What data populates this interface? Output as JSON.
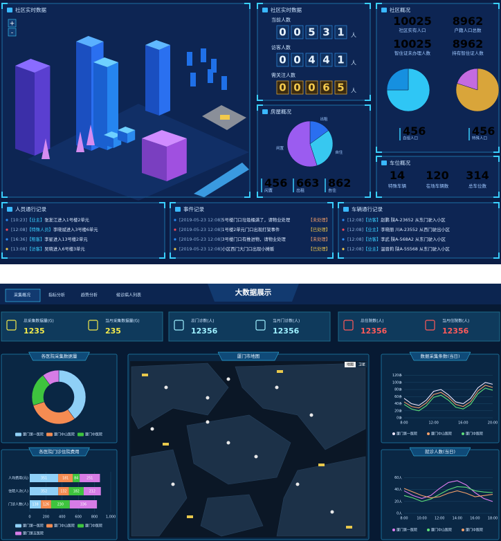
{
  "top": {
    "city": {
      "title": "社区实时数据",
      "zoom": [
        "+",
        "-"
      ]
    },
    "realtime": {
      "title": "社区实时数据",
      "rows": [
        {
          "label": "当前人数",
          "count": "00531",
          "unit": "人"
        },
        {
          "label": "访客人数",
          "count": "00441",
          "unit": "人"
        },
        {
          "label": "需关注人数",
          "count": "00065",
          "unit": "人"
        }
      ]
    },
    "overview": {
      "title": "社区概况",
      "stats": [
        {
          "value": 10025,
          "unit": "人",
          "label": "社区实有人口",
          "color": "#3ec7f5"
        },
        {
          "value": 8962,
          "unit": "个",
          "label": "户籍人口总数",
          "color": "#e07cf0"
        },
        {
          "value": 10025,
          "unit": "人",
          "label": "智住证未办理人数",
          "color": "#3ec7f5"
        },
        {
          "value": 8962,
          "unit": "个",
          "label": "持有智住证人数",
          "color": "#f2c94c"
        }
      ],
      "pies": [
        {
          "values": [
            75,
            25
          ],
          "colors": [
            "#2fc6f5",
            "#1690e0"
          ]
        },
        {
          "values": [
            80,
            20
          ],
          "colors": [
            "#d9a53a",
            "#c46be0"
          ]
        }
      ],
      "substats": [
        {
          "value": 456,
          "unit": "户",
          "label": "自组人口"
        },
        {
          "value": 456,
          "unit": "户",
          "label": "特殊人口"
        }
      ]
    },
    "house": {
      "title": "房屋概况",
      "pie": {
        "labels": [
          "出租",
          "自住",
          "闲置"
        ],
        "values": [
          15,
          30,
          55
        ],
        "colors": [
          "#2a6ff0",
          "#37c8f0",
          "#9b5cf0"
        ]
      },
      "stats": [
        {
          "value": 456,
          "unit": "户",
          "label": "闲置"
        },
        {
          "value": 663,
          "unit": "户",
          "label": "出租"
        },
        {
          "value": 862,
          "unit": "户",
          "label": "自住"
        }
      ]
    },
    "parking": {
      "title": "车位概况",
      "stats": [
        {
          "value": 14,
          "unit": "个",
          "label": "特殊车辆"
        },
        {
          "value": 120,
          "unit": "个",
          "label": "在场车辆数"
        },
        {
          "value": 314,
          "unit": "个",
          "label": "总车位数"
        }
      ]
    },
    "people_log": {
      "title": "人员通行记录",
      "rows": [
        {
          "time": "[10:23]",
          "tag": "【业主】",
          "text": "张发江进入1号楼2单元"
        },
        {
          "time": "[12:08]",
          "tag": "【特殊人员】",
          "text": "李晓斌进入3号楼6单元"
        },
        {
          "time": "[16:36]",
          "tag": "【租客】",
          "text": "李星进入13号楼2单元"
        },
        {
          "time": "[13:08]",
          "tag": "【访客】",
          "text": "吴晓进入6号楼3单元"
        }
      ]
    },
    "event_log": {
      "title": "事件记录",
      "rows": [
        {
          "time": "[2019-05-23 12:08]",
          "text": "5号楼门口垃圾桶满了，请物业处理",
          "status": "【未处理】"
        },
        {
          "time": "[2019-05-23 12:08]",
          "text": "1号楼2单元门口出现打架事件",
          "status": "【已处理】"
        },
        {
          "time": "[2019-05-23 12:08]",
          "text": "3号楼门口有推进物，请物业处理",
          "status": "【未处理】"
        },
        {
          "time": "[2019-05-23 12:08]",
          "text": "小区西门大门口出现小摊贩",
          "status": "【已处理】"
        }
      ]
    },
    "car_log": {
      "title": "车辆通行记录",
      "rows": [
        {
          "time": "[12:08]",
          "tag": "【访客】",
          "text": "赵鹏 陕A-23652 从东门驶入小区"
        },
        {
          "time": "[12:08]",
          "tag": "【业主】",
          "text": "李晓丽 川A-23552 从西门驶出小区"
        },
        {
          "time": "[12:08]",
          "tag": "【访客】",
          "text": "李武 陕A-568A2 从东门驶入小区"
        },
        {
          "time": "[12:08]",
          "tag": "【业主】",
          "text": "温晋莉 陕A-5S568 从东门驶入小区"
        }
      ]
    }
  },
  "bottom": {
    "tabs": [
      "采集概况",
      "指标分析",
      "趋势分析",
      "候诊病人列表"
    ],
    "title": "大数据展示",
    "stats": [
      {
        "label": "总采集数据量(G)",
        "value": 1235
      },
      {
        "label": "当月采集数据量(G)",
        "value": 235
      },
      {
        "label": "总门诊数(人)",
        "value": 12356
      },
      {
        "label": "当月门诊数(人)",
        "value": 12356
      },
      {
        "label": "总住院数(人)",
        "value": 12356
      },
      {
        "label": "当月住院数(人)",
        "value": 12356
      }
    ],
    "map": {
      "title": "厦门市地图",
      "toggle": [
        "地图",
        "卫星"
      ]
    },
    "donut": {
      "type": "pie",
      "title": "各医院采集数据量",
      "categories": [
        "厦门第一医院",
        "厦门中山医院",
        "厦门中医院",
        null
      ],
      "values": [
        40,
        30,
        20,
        10
      ],
      "colors": [
        "#8fd0f7",
        "#f58c52",
        "#3ec43e",
        "#d77ce6"
      ]
    },
    "bars": {
      "type": "bar",
      "orientation": "horizontal",
      "stacked": true,
      "title": "各医院门诊住院费用",
      "categories": [
        "人均费用(元)",
        "住院人次(人)",
        "门诊人数(人)"
      ],
      "series": [
        {
          "name": "厦门第一医院",
          "color": "#8fd0f7",
          "values": [
            351,
            352,
            138
          ]
        },
        {
          "name": "厦门中山医院",
          "color": "#f58c52",
          "values": [
            181,
            132,
            126
          ]
        },
        {
          "name": "厦门中医院",
          "color": "#3ec43e",
          "values": [
            84,
            182,
            230
          ]
        },
        {
          "name": "厦门第五医院",
          "color": "#d77ce6",
          "values": [
            251,
            212,
            336
          ]
        }
      ],
      "xlim": [
        0,
        1000
      ],
      "xticks": [
        0,
        200,
        400,
        600,
        800,
        {
          "value": 1000,
          "label": "1,000"
        }
      ]
    },
    "line1": {
      "type": "line",
      "title": "数据采集条数(当日)",
      "categories": [
        "8:00",
        null,
        null,
        null,
        "12:00",
        null,
        null,
        null,
        "16:00",
        null,
        null,
        null,
        "20:00"
      ],
      "series": [
        {
          "name": "厦门第一医院",
          "color": "#f0e8ff",
          "values": [
            55,
            40,
            35,
            50,
            75,
            80,
            65,
            45,
            40,
            55,
            85,
            100,
            95
          ]
        },
        {
          "name": "厦门中山医院",
          "color": "#f5a06a",
          "values": [
            45,
            32,
            28,
            42,
            66,
            72,
            58,
            38,
            32,
            46,
            76,
            92,
            86
          ]
        },
        {
          "name": "厦门中医院",
          "color": "#5ee07a",
          "values": [
            38,
            25,
            20,
            34,
            58,
            64,
            50,
            30,
            25,
            38,
            68,
            84,
            78
          ]
        }
      ],
      "ylim": [
        0,
        125
      ],
      "yticks": [
        {
          "value": 0,
          "label": "0条"
        },
        {
          "value": 20,
          "label": "20条"
        },
        {
          "value": 40,
          "label": "40条"
        },
        {
          "value": 60,
          "label": "60条"
        },
        {
          "value": 80,
          "label": "80条"
        },
        {
          "value": 100,
          "label": "100条"
        },
        {
          "value": 120,
          "label": "120条"
        }
      ]
    },
    "line2": {
      "type": "line",
      "title": "就诊人数(当日)",
      "categories": [
        "8:00",
        null,
        "10:00",
        null,
        "12:00",
        null,
        "14:00",
        null,
        "16:00",
        null,
        "18:00"
      ],
      "series": [
        {
          "name": "厦门第一医院",
          "color": "#e07cf0",
          "values": [
            38,
            30,
            25,
            30,
            42,
            52,
            55,
            48,
            35,
            25,
            20
          ]
        },
        {
          "name": "厦门中山医院",
          "color": "#5ee07a",
          "values": [
            30,
            26,
            20,
            24,
            32,
            40,
            45,
            44,
            38,
            36,
            35
          ]
        },
        {
          "name": "厦门中医院",
          "color": "#f5a06a",
          "values": [
            42,
            36,
            30,
            26,
            28,
            34,
            38,
            34,
            28,
            30,
            32
          ]
        }
      ],
      "ylim": [
        0,
        70
      ],
      "yticks": [
        {
          "value": 0,
          "label": "0人"
        },
        {
          "value": 20,
          "label": "20人"
        },
        {
          "value": 40,
          "label": "40人"
        },
        {
          "value": 60,
          "label": "60人"
        }
      ]
    }
  }
}
